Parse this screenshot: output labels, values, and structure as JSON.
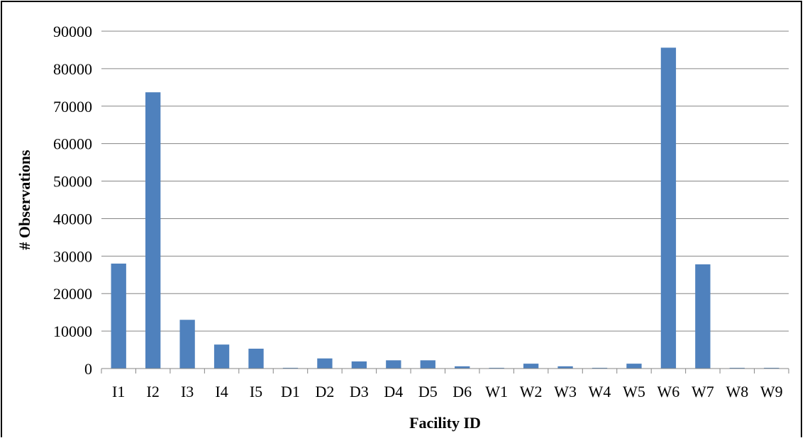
{
  "chart_data": {
    "type": "bar",
    "title": "",
    "xlabel": "Facility ID",
    "ylabel": "# Observations",
    "categories": [
      "I1",
      "I2",
      "I3",
      "I4",
      "I5",
      "D1",
      "D2",
      "D3",
      "D4",
      "D5",
      "D6",
      "W1",
      "W2",
      "W3",
      "W4",
      "W5",
      "W6",
      "W7",
      "W8",
      "W9"
    ],
    "series": [
      {
        "values": [
          28000,
          73700,
          13000,
          6400,
          5300,
          200,
          2700,
          1900,
          2200,
          2200,
          600,
          200,
          1300,
          600,
          200,
          1300,
          85600,
          27800,
          200,
          200
        ]
      }
    ],
    "ylim": [
      0,
      90000
    ],
    "yticks": [
      0,
      10000,
      20000,
      30000,
      40000,
      50000,
      60000,
      70000,
      80000,
      90000
    ],
    "grid": true,
    "bar_color": "#4f81bd",
    "grid_color": "#868686",
    "legend": "none"
  }
}
